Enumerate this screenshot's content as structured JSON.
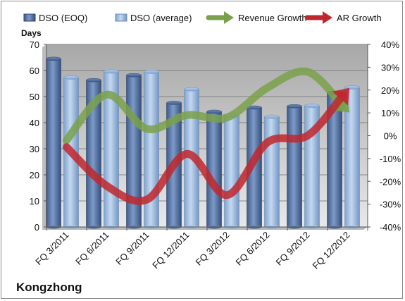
{
  "chart_data": {
    "type": "bar",
    "title": "",
    "company": "Kongzhong",
    "categories": [
      "FQ 3/2011",
      "FQ 6/2011",
      "FQ 9/2011",
      "FQ 12/2011",
      "FQ 3/2012",
      "FQ 6/2012",
      "FQ 9/2012",
      "FQ 12/2012"
    ],
    "y_left": {
      "label": "Days",
      "min": 0,
      "max": 70,
      "ticks": [
        0,
        10,
        20,
        30,
        40,
        50,
        60,
        70
      ]
    },
    "y_right": {
      "min": -40,
      "max": 40,
      "ticks": [
        -40,
        -30,
        -20,
        -10,
        0,
        10,
        20,
        30,
        40
      ],
      "tick_labels": [
        "-40%",
        "-30%",
        "-20%",
        "-10%",
        "0%",
        "10%",
        "20%",
        "30%",
        "40%"
      ]
    },
    "series": [
      {
        "name": "DSO (EOQ)",
        "kind": "bar",
        "axis": "left",
        "color": "#4f6fa0",
        "values": [
          64.5,
          56.3,
          58.2,
          47.6,
          44.2,
          45.8,
          46.3,
          51.5
        ]
      },
      {
        "name": "DSO (average)",
        "kind": "bar",
        "axis": "left",
        "color": "#8fb2dc",
        "values": [
          57.3,
          59.6,
          59.5,
          52.8,
          42.8,
          42.3,
          46.5,
          53.5
        ]
      },
      {
        "name": "Revenue Growth",
        "kind": "line",
        "axis": "right",
        "color": "#7aa14a",
        "values": [
          -2,
          18,
          3,
          9,
          8,
          21,
          28,
          11
        ]
      },
      {
        "name": "AR Growth",
        "kind": "line",
        "axis": "right",
        "color": "#c0272d",
        "values": [
          -5,
          -22,
          -28,
          -8,
          -26,
          -3,
          0,
          20
        ]
      }
    ],
    "grid": true,
    "legend": "top"
  }
}
